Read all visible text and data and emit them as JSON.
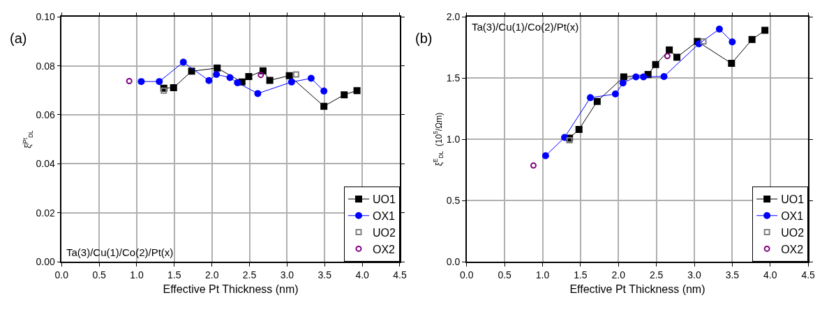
{
  "chart_data": [
    {
      "type": "line",
      "title": "(a)",
      "xlabel": "Effective Pt Thickness (nm)",
      "ylabel": "ξ$^{jPt}$$_{DL}$",
      "annotations": [
        "Ta(3)/Cu(1)/Co(2)/Pt(x)"
      ],
      "xlim": [
        0,
        4.5
      ],
      "xticks": [
        {
          "value": 0,
          "label": "0.0"
        },
        0.5,
        {
          "value": 1,
          "label": "1.0"
        },
        1.5,
        {
          "value": 2,
          "label": "2.0"
        },
        2.5,
        {
          "value": 3,
          "label": "3.0"
        },
        3.5,
        {
          "value": 4,
          "label": "4.0"
        },
        4.5
      ],
      "ylim": [
        0,
        0.1
      ],
      "yticks": [
        {
          "value": 0,
          "label": "0.00"
        },
        0.02,
        0.04,
        0.06,
        0.08,
        {
          "value": 0.1,
          "label": "0.10"
        }
      ],
      "grid": true,
      "legend": "bottom right",
      "series": [
        {
          "name": "UO1",
          "marker": "square",
          "color": "#000000",
          "x": [
            1.36,
            1.49,
            1.73,
            2.07,
            2.4,
            2.49,
            2.68,
            2.77,
            3.03,
            3.49,
            3.76,
            3.93
          ],
          "values": [
            0.0709,
            0.0711,
            0.0778,
            0.0791,
            0.0734,
            0.0756,
            0.078,
            0.0741,
            0.076,
            0.0635,
            0.0682,
            0.0699
          ]
        },
        {
          "name": "OX1",
          "marker": "circle",
          "color": "#0000ff",
          "x": [
            1.06,
            1.3,
            1.62,
            1.96,
            2.06,
            2.24,
            2.34,
            2.61,
            3.06,
            3.32,
            3.49
          ],
          "values": [
            0.0736,
            0.0736,
            0.0815,
            0.074,
            0.0765,
            0.0752,
            0.0731,
            0.0687,
            0.0734,
            0.0749,
            0.0697
          ]
        },
        {
          "name": "UO2",
          "type": "scatter",
          "marker": "square",
          "color": "#808080",
          "x": [
            1.36,
            3.12
          ],
          "values": [
            0.0699,
            0.0765
          ]
        },
        {
          "name": "OX2",
          "type": "scatter",
          "marker": "circle",
          "color": "#800080",
          "x": [
            0.9,
            2.65
          ],
          "values": [
            0.0738,
            0.0763
          ]
        }
      ]
    },
    {
      "type": "line",
      "title": "(b)",
      "xlabel": "Effective Pt Thickness (nm)",
      "ylabel": "ξ$^{E}$$_{DL}$  (10$^{5}$/Ωm)",
      "annotations": [
        "Ta(3)/Cu(1)/Co(2)/Pt(x)"
      ],
      "xlim": [
        0,
        4.5
      ],
      "xticks": [
        {
          "value": 0,
          "label": "0.0"
        },
        0.5,
        {
          "value": 1,
          "label": "1.0"
        },
        1.5,
        {
          "value": 2,
          "label": "2.0"
        },
        2.5,
        {
          "value": 3,
          "label": "3.0"
        },
        3.5,
        {
          "value": 4,
          "label": "4.0"
        },
        4.5
      ],
      "ylim": [
        0,
        2
      ],
      "yticks": [
        {
          "value": 0,
          "label": "0.0"
        },
        0.5,
        {
          "value": 1,
          "label": "1.0"
        },
        1.5,
        {
          "value": 2,
          "label": "2.0"
        }
      ],
      "grid": true,
      "legend": "bottom right",
      "series": [
        {
          "name": "UO1",
          "marker": "square",
          "color": "#000000",
          "x": [
            1.355,
            1.48,
            1.72,
            2.07,
            2.39,
            2.49,
            2.67,
            2.77,
            3.04,
            3.49,
            3.76,
            3.93
          ],
          "values": [
            1.01,
            1.08,
            1.31,
            1.51,
            1.53,
            1.61,
            1.73,
            1.67,
            1.8,
            1.62,
            1.815,
            1.89
          ]
        },
        {
          "name": "OX1",
          "marker": "circle",
          "color": "#0000ff",
          "x": [
            1.04,
            1.29,
            1.63,
            1.96,
            2.06,
            2.23,
            2.33,
            2.6,
            3.06,
            3.33,
            3.5
          ],
          "values": [
            0.866,
            1.015,
            1.34,
            1.37,
            1.46,
            1.51,
            1.51,
            1.513,
            1.78,
            1.9,
            1.795
          ]
        },
        {
          "name": "UO2",
          "type": "scatter",
          "marker": "square",
          "color": "#808080",
          "x": [
            1.355,
            3.12
          ],
          "values": [
            0.993,
            1.8
          ]
        },
        {
          "name": "OX2",
          "type": "scatter",
          "marker": "circle",
          "color": "#800080",
          "x": [
            0.88,
            2.645
          ],
          "values": [
            0.786,
            1.68
          ]
        }
      ]
    }
  ]
}
